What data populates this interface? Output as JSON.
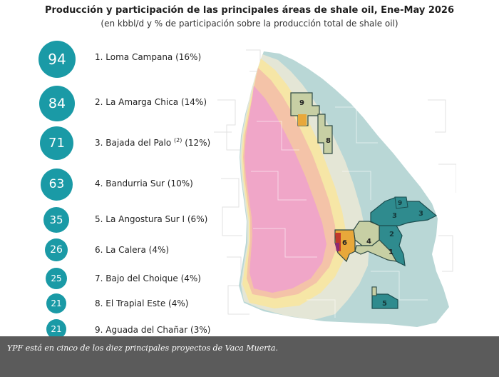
{
  "header": {
    "title": "Producción y participación de las principales áreas de shale oil, Ene-May 2026",
    "subtitle": "(en kbbl/d y % de participación sobre la producción total de shale oil)"
  },
  "ranking": [
    {
      "value": "94",
      "label": "1. Loma Campana (16%)"
    },
    {
      "value": "84",
      "label": "2. La Amarga Chica (14%)"
    },
    {
      "value": "71",
      "label": "3. Bajada del Palo",
      "note": "(2)",
      "pct": " (12%)"
    },
    {
      "value": "63",
      "label": "4. Bandurria Sur (10%)"
    },
    {
      "value": "35",
      "label": "5. La Angostura Sur I (6%)"
    },
    {
      "value": "26",
      "label": "6. La Calera (4%)"
    },
    {
      "value": "25",
      "label": "7. Bajo del Choique (4%)"
    },
    {
      "value": "21",
      "label": "8. El Trapial Este (4%)"
    },
    {
      "value": "21",
      "label": "9. Aguada del Chañar (3%)"
    }
  ],
  "map": {
    "area_labels": [
      "1",
      "2",
      "3",
      "3",
      "4",
      "5",
      "6",
      "7",
      "8",
      "9"
    ],
    "colors": {
      "bubble": "#1a9aa6",
      "oil_window": "#f0a6c8",
      "wet_gas": "#f6e6a6",
      "dry_gas": "#e4e6d6",
      "outer_basin": "#b9d7d6",
      "block_green": "#c7cfa4",
      "block_teal": "#2f8b8e"
    }
  },
  "caption": {
    "text": "YPF está en cinco de los diez principales proyectos de Vaca Muerta."
  }
}
